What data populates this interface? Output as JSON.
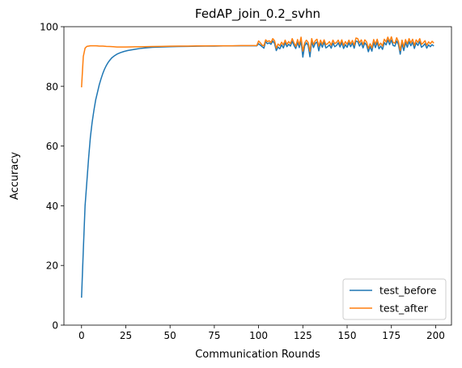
{
  "chart_data": {
    "type": "line",
    "title": "FedAP_join_0.2_svhn",
    "xlabel": "Communication Rounds",
    "ylabel": "Accuracy",
    "xlim": [
      -9.95,
      208.95
    ],
    "ylim": [
      0,
      100
    ],
    "xticks": [
      0,
      25,
      50,
      75,
      100,
      125,
      150,
      175,
      200
    ],
    "yticks": [
      0,
      20,
      40,
      60,
      80,
      100
    ],
    "grid": false,
    "legend_position": "lower right",
    "series": [
      {
        "name": "test_before",
        "color": "#1f77b4",
        "points": [
          [
            0,
            9.2
          ],
          [
            1,
            25
          ],
          [
            2,
            40
          ],
          [
            3,
            48
          ],
          [
            4,
            56
          ],
          [
            5,
            63
          ],
          [
            6,
            68
          ],
          [
            7,
            72
          ],
          [
            8,
            75.5
          ],
          [
            9,
            78
          ],
          [
            10,
            80.5
          ],
          [
            11,
            82.5
          ],
          [
            12,
            84.3
          ],
          [
            13,
            85.8
          ],
          [
            14,
            87
          ],
          [
            15,
            88
          ],
          [
            16,
            88.8
          ],
          [
            17,
            89.5
          ],
          [
            18,
            90
          ],
          [
            19,
            90.4
          ],
          [
            20,
            90.8
          ],
          [
            22,
            91.3
          ],
          [
            24,
            91.7
          ],
          [
            26,
            92
          ],
          [
            28,
            92.2
          ],
          [
            30,
            92.4
          ],
          [
            33,
            92.7
          ],
          [
            36,
            92.9
          ],
          [
            40,
            93.1
          ],
          [
            45,
            93.2
          ],
          [
            50,
            93.3
          ],
          [
            55,
            93.35
          ],
          [
            60,
            93.4
          ],
          [
            65,
            93.45
          ],
          [
            70,
            93.5
          ],
          [
            75,
            93.5
          ],
          [
            80,
            93.55
          ],
          [
            85,
            93.55
          ],
          [
            90,
            93.6
          ],
          [
            95,
            93.6
          ],
          [
            99,
            93.6
          ],
          [
            100,
            94.3
          ],
          [
            101,
            93.8
          ],
          [
            102,
            93.3
          ],
          [
            103,
            92.8
          ],
          [
            104,
            95
          ],
          [
            105,
            94.3
          ],
          [
            106,
            94.6
          ],
          [
            107,
            94.1
          ],
          [
            108,
            95.2
          ],
          [
            109,
            94.4
          ],
          [
            110,
            92
          ],
          [
            111,
            93.2
          ],
          [
            112,
            92.6
          ],
          [
            113,
            93.9
          ],
          [
            114,
            92.9
          ],
          [
            115,
            94.6
          ],
          [
            116,
            93.3
          ],
          [
            117,
            94.1
          ],
          [
            118,
            93.5
          ],
          [
            119,
            95.1
          ],
          [
            120,
            93.7
          ],
          [
            121,
            92.7
          ],
          [
            122,
            94.7
          ],
          [
            123,
            93
          ],
          [
            124,
            95.2
          ],
          [
            125,
            89.8
          ],
          [
            126,
            93.5
          ],
          [
            127,
            94.6
          ],
          [
            128,
            93.7
          ],
          [
            129,
            89.9
          ],
          [
            130,
            95
          ],
          [
            131,
            93
          ],
          [
            132,
            94.4
          ],
          [
            133,
            94.9
          ],
          [
            134,
            91.9
          ],
          [
            135,
            94.5
          ],
          [
            136,
            93.1
          ],
          [
            137,
            94.8
          ],
          [
            138,
            92.9
          ],
          [
            139,
            93.3
          ],
          [
            140,
            93.9
          ],
          [
            141,
            92.8
          ],
          [
            142,
            94.5
          ],
          [
            143,
            93.3
          ],
          [
            144,
            93.7
          ],
          [
            145,
            94.6
          ],
          [
            146,
            93.2
          ],
          [
            147,
            94.7
          ],
          [
            148,
            92.7
          ],
          [
            149,
            94
          ],
          [
            150,
            93.1
          ],
          [
            151,
            94.6
          ],
          [
            152,
            93.3
          ],
          [
            153,
            94.5
          ],
          [
            154,
            92.8
          ],
          [
            155,
            95.2
          ],
          [
            156,
            95
          ],
          [
            157,
            93.5
          ],
          [
            158,
            94.6
          ],
          [
            159,
            92.9
          ],
          [
            160,
            94.6
          ],
          [
            161,
            93.8
          ],
          [
            162,
            91.6
          ],
          [
            163,
            93.3
          ],
          [
            164,
            91.8
          ],
          [
            165,
            94.7
          ],
          [
            166,
            93
          ],
          [
            167,
            94.8
          ],
          [
            168,
            92.6
          ],
          [
            169,
            93.5
          ],
          [
            170,
            92.4
          ],
          [
            171,
            94.7
          ],
          [
            172,
            93.9
          ],
          [
            173,
            95.5
          ],
          [
            174,
            94
          ],
          [
            175,
            95.5
          ],
          [
            176,
            93.7
          ],
          [
            177,
            93.5
          ],
          [
            178,
            95.2
          ],
          [
            179,
            94
          ],
          [
            180,
            90.8
          ],
          [
            181,
            94.5
          ],
          [
            182,
            92
          ],
          [
            183,
            94.7
          ],
          [
            184,
            93.1
          ],
          [
            185,
            95
          ],
          [
            186,
            93.6
          ],
          [
            187,
            94.8
          ],
          [
            188,
            92.7
          ],
          [
            189,
            94.6
          ],
          [
            190,
            93.7
          ],
          [
            191,
            95
          ],
          [
            192,
            93.1
          ],
          [
            193,
            93.6
          ],
          [
            194,
            94.3
          ],
          [
            195,
            92.8
          ],
          [
            196,
            93.9
          ],
          [
            197,
            93.3
          ],
          [
            198,
            94
          ],
          [
            199,
            93.5
          ]
        ]
      },
      {
        "name": "test_after",
        "color": "#ff7f0e",
        "points": [
          [
            0,
            79.7
          ],
          [
            1,
            90
          ],
          [
            2,
            92.8
          ],
          [
            3,
            93.4
          ],
          [
            4,
            93.5
          ],
          [
            5,
            93.6
          ],
          [
            6,
            93.6
          ],
          [
            7,
            93.6
          ],
          [
            8,
            93.6
          ],
          [
            9,
            93.55
          ],
          [
            10,
            93.5
          ],
          [
            12,
            93.5
          ],
          [
            14,
            93.4
          ],
          [
            16,
            93.35
          ],
          [
            18,
            93.3
          ],
          [
            20,
            93.2
          ],
          [
            25,
            93.2
          ],
          [
            30,
            93.25
          ],
          [
            35,
            93.3
          ],
          [
            40,
            93.35
          ],
          [
            45,
            93.4
          ],
          [
            50,
            93.45
          ],
          [
            55,
            93.5
          ],
          [
            60,
            93.5
          ],
          [
            65,
            93.55
          ],
          [
            70,
            93.55
          ],
          [
            75,
            93.6
          ],
          [
            80,
            93.6
          ],
          [
            85,
            93.6
          ],
          [
            90,
            93.65
          ],
          [
            95,
            93.65
          ],
          [
            99,
            93.7
          ],
          [
            100,
            95.2
          ],
          [
            101,
            94.6
          ],
          [
            102,
            93.8
          ],
          [
            103,
            93.6
          ],
          [
            104,
            95.6
          ],
          [
            105,
            95
          ],
          [
            106,
            95.3
          ],
          [
            107,
            94.7
          ],
          [
            108,
            96
          ],
          [
            109,
            95.3
          ],
          [
            110,
            92.8
          ],
          [
            111,
            94.2
          ],
          [
            112,
            93.6
          ],
          [
            113,
            94.8
          ],
          [
            114,
            93.9
          ],
          [
            115,
            95.5
          ],
          [
            116,
            94.1
          ],
          [
            117,
            95
          ],
          [
            118,
            94.3
          ],
          [
            119,
            96
          ],
          [
            120,
            94.6
          ],
          [
            121,
            93.4
          ],
          [
            122,
            95.7
          ],
          [
            123,
            94
          ],
          [
            124,
            96.5
          ],
          [
            125,
            91.8
          ],
          [
            126,
            94.5
          ],
          [
            127,
            95.5
          ],
          [
            128,
            94.7
          ],
          [
            129,
            91.7
          ],
          [
            130,
            96
          ],
          [
            131,
            94
          ],
          [
            132,
            95.3
          ],
          [
            133,
            95.8
          ],
          [
            134,
            93.5
          ],
          [
            135,
            95.5
          ],
          [
            136,
            94.1
          ],
          [
            137,
            95.6
          ],
          [
            138,
            94
          ],
          [
            139,
            94.3
          ],
          [
            140,
            95
          ],
          [
            141,
            93.8
          ],
          [
            142,
            95.5
          ],
          [
            143,
            94.3
          ],
          [
            144,
            94.7
          ],
          [
            145,
            95.5
          ],
          [
            146,
            94.1
          ],
          [
            147,
            95.6
          ],
          [
            148,
            93.7
          ],
          [
            149,
            95
          ],
          [
            150,
            94.1
          ],
          [
            151,
            95.5
          ],
          [
            152,
            94.2
          ],
          [
            153,
            95.4
          ],
          [
            154,
            93.8
          ],
          [
            155,
            96.2
          ],
          [
            156,
            96
          ],
          [
            157,
            94.6
          ],
          [
            158,
            95.6
          ],
          [
            159,
            94
          ],
          [
            160,
            95.6
          ],
          [
            161,
            94.9
          ],
          [
            162,
            92.7
          ],
          [
            163,
            94.3
          ],
          [
            164,
            92.9
          ],
          [
            165,
            95.7
          ],
          [
            166,
            94.1
          ],
          [
            167,
            95.8
          ],
          [
            168,
            93.6
          ],
          [
            169,
            94.5
          ],
          [
            170,
            93.5
          ],
          [
            171,
            95.8
          ],
          [
            172,
            94.9
          ],
          [
            173,
            96.5
          ],
          [
            174,
            95
          ],
          [
            175,
            96.6
          ],
          [
            176,
            94.7
          ],
          [
            177,
            94.5
          ],
          [
            178,
            96.3
          ],
          [
            179,
            95
          ],
          [
            180,
            92
          ],
          [
            181,
            95.5
          ],
          [
            182,
            93.2
          ],
          [
            183,
            95.7
          ],
          [
            184,
            94.2
          ],
          [
            185,
            96
          ],
          [
            186,
            94.6
          ],
          [
            187,
            95.8
          ],
          [
            188,
            93.7
          ],
          [
            189,
            95.6
          ],
          [
            190,
            94.7
          ],
          [
            191,
            96
          ],
          [
            192,
            94.1
          ],
          [
            193,
            94.6
          ],
          [
            194,
            95.3
          ],
          [
            195,
            93.8
          ],
          [
            196,
            94.9
          ],
          [
            197,
            94.3
          ],
          [
            198,
            95.1
          ],
          [
            199,
            94.5
          ]
        ]
      }
    ]
  }
}
